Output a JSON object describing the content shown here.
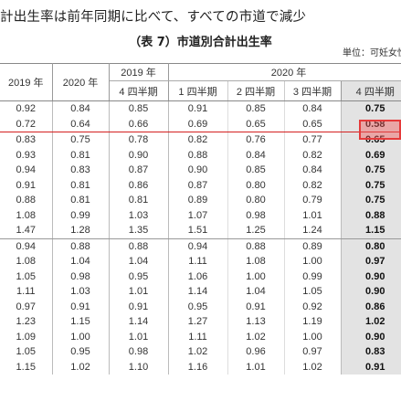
{
  "heading": "計出生率は前年同期に比べて、すべての市道で減少",
  "table_title": "（表 7）市道別合計出生率",
  "unit": "単位：可妊女性",
  "headers": {
    "y2019": "2019 年",
    "y2020": "2020 年",
    "g2019": "2019 年",
    "g2020": "2020 年",
    "q4_2019": "4 四半期",
    "q1": "1 四半期",
    "q2": "2 四半期",
    "q3": "3 四半期",
    "q4": "4 四半期"
  },
  "rows": [
    [
      "0.92",
      "0.84",
      "0.85",
      "0.91",
      "0.85",
      "0.84",
      "0.75"
    ],
    [
      "0.72",
      "0.64",
      "0.66",
      "0.69",
      "0.65",
      "0.65",
      "0.58"
    ],
    [
      "0.83",
      "0.75",
      "0.78",
      "0.82",
      "0.76",
      "0.77",
      "0.65"
    ],
    [
      "0.93",
      "0.81",
      "0.90",
      "0.88",
      "0.84",
      "0.82",
      "0.69"
    ],
    [
      "0.94",
      "0.83",
      "0.87",
      "0.90",
      "0.85",
      "0.84",
      "0.75"
    ],
    [
      "0.91",
      "0.81",
      "0.86",
      "0.87",
      "0.80",
      "0.82",
      "0.75"
    ],
    [
      "0.88",
      "0.81",
      "0.81",
      "0.89",
      "0.80",
      "0.79",
      "0.75"
    ],
    [
      "1.08",
      "0.99",
      "1.03",
      "1.07",
      "0.98",
      "1.01",
      "0.88"
    ],
    [
      "1.47",
      "1.28",
      "1.35",
      "1.51",
      "1.25",
      "1.24",
      "1.15"
    ],
    [
      "0.94",
      "0.88",
      "0.88",
      "0.94",
      "0.88",
      "0.89",
      "0.80"
    ],
    [
      "1.08",
      "1.04",
      "1.04",
      "1.11",
      "1.08",
      "1.00",
      "0.97"
    ],
    [
      "1.05",
      "0.98",
      "0.95",
      "1.06",
      "1.00",
      "0.99",
      "0.90"
    ],
    [
      "1.11",
      "1.03",
      "1.01",
      "1.14",
      "1.04",
      "1.05",
      "0.90"
    ],
    [
      "0.97",
      "0.91",
      "0.91",
      "0.95",
      "0.91",
      "0.92",
      "0.86"
    ],
    [
      "1.23",
      "1.15",
      "1.14",
      "1.27",
      "1.13",
      "1.19",
      "1.02"
    ],
    [
      "1.09",
      "1.00",
      "1.01",
      "1.11",
      "1.02",
      "1.00",
      "0.90"
    ],
    [
      "1.05",
      "0.95",
      "0.98",
      "1.02",
      "0.96",
      "0.97",
      "0.83"
    ],
    [
      "1.15",
      "1.02",
      "1.10",
      "1.16",
      "1.01",
      "1.02",
      "0.91"
    ]
  ]
}
